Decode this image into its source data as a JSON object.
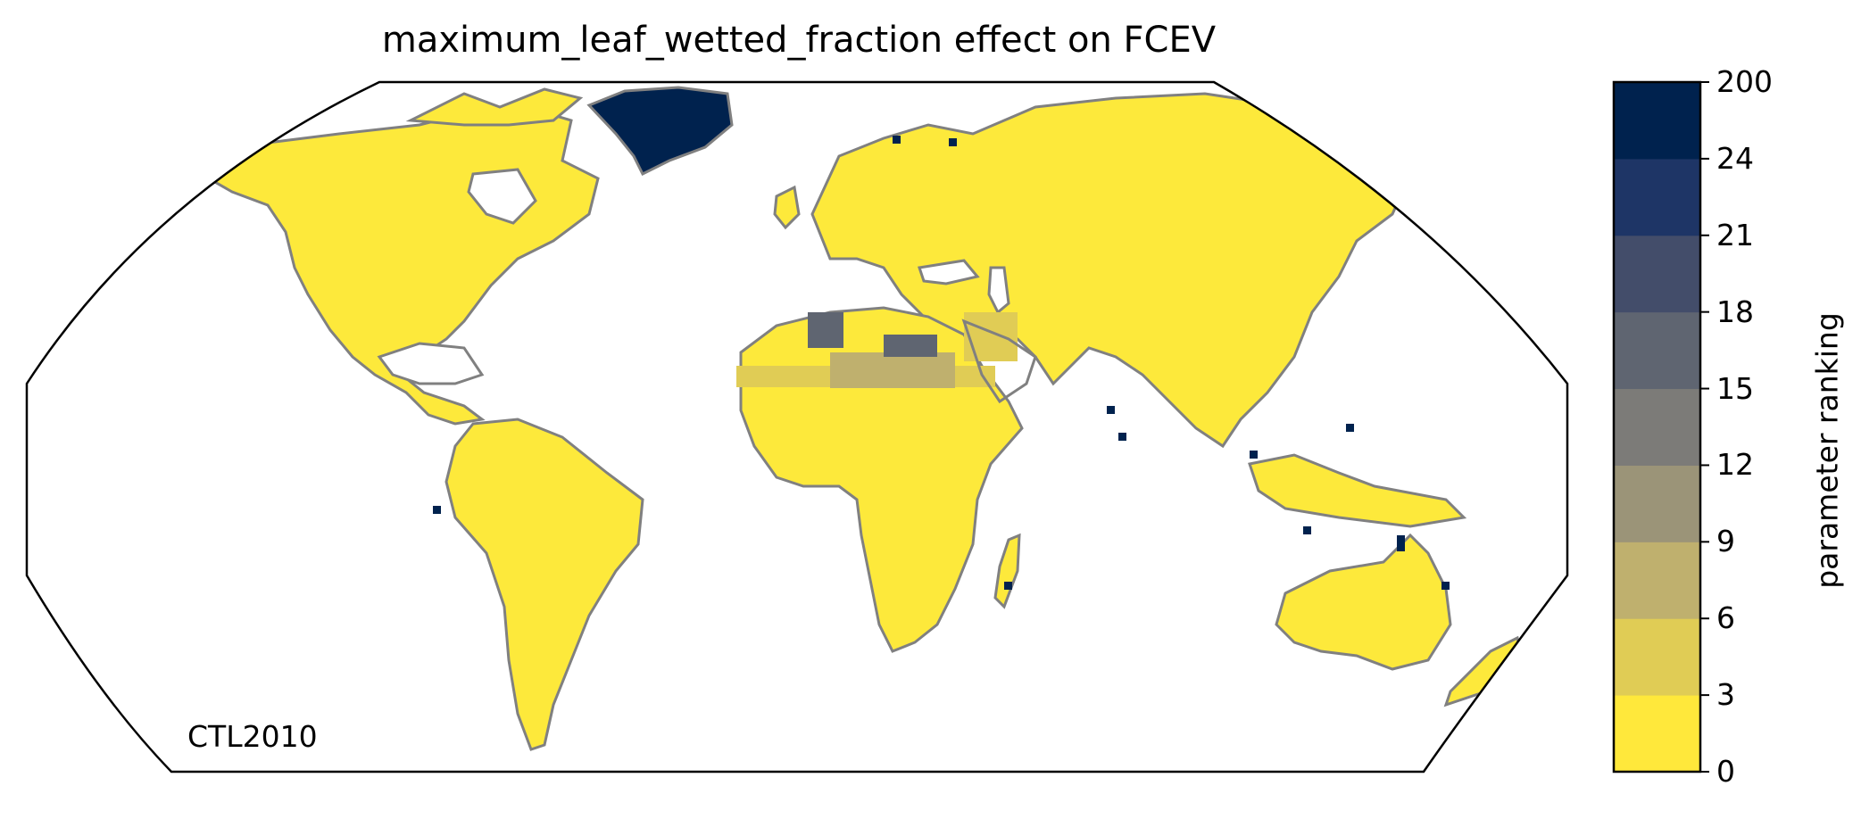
{
  "title": "maximum_leaf_wetted_fraction effect on FCEV",
  "scenario_label": "CTL2010",
  "colorbar": {
    "label": "parameter ranking",
    "tick_labels": [
      "200",
      "24",
      "21",
      "18",
      "15",
      "12",
      "9",
      "6",
      "3",
      "0"
    ],
    "bin_colors": [
      "#ffe83b",
      "#e0cc55",
      "#bfb06e",
      "#9b9478",
      "#7c7b78",
      "#5f6571",
      "#434d6a",
      "#1e3566",
      "#00224e"
    ]
  },
  "map": {
    "projection": "Robinson",
    "land_color": "#fde93b",
    "coastline_color": "#808080",
    "highlight_colors": {
      "greenland": "#00224e",
      "sahara_low": "#e0cc55",
      "sahara_mid": "#bfb06e",
      "sahara_high": "#5f6571"
    }
  }
}
